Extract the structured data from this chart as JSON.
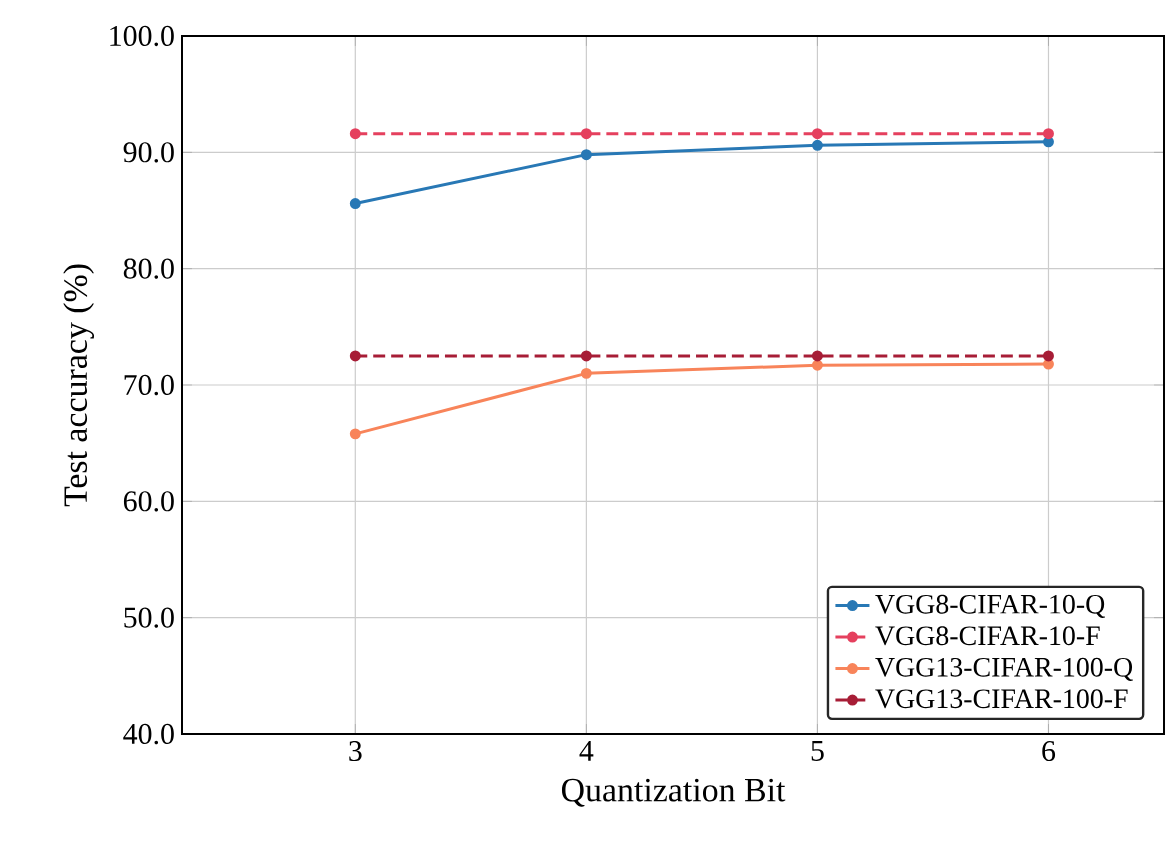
{
  "chart_data": {
    "type": "line",
    "xlabel": "Quantization Bit",
    "ylabel": "Test accuracy (%)",
    "x": [
      3,
      4,
      5,
      6
    ],
    "series": [
      {
        "name": "VGG8-CIFAR-10-Q",
        "color": "#2878b5",
        "line_style": "solid",
        "values": [
          85.6,
          89.8,
          90.6,
          90.9
        ]
      },
      {
        "name": "VGG8-CIFAR-10-F",
        "color": "#e5405e",
        "line_style": "dashed",
        "values": [
          91.6,
          91.6,
          91.6,
          91.6
        ]
      },
      {
        "name": "VGG13-CIFAR-100-Q",
        "color": "#f8845a",
        "line_style": "solid",
        "values": [
          65.8,
          71.0,
          71.7,
          71.8
        ]
      },
      {
        "name": "VGG13-CIFAR-100-F",
        "color": "#a71d36",
        "line_style": "dashed",
        "values": [
          72.5,
          72.5,
          72.5,
          72.5
        ]
      }
    ],
    "xlim": [
      2.25,
      6.5
    ],
    "ylim": [
      40,
      100
    ],
    "xticks": [
      3,
      4,
      5,
      6
    ],
    "yticks": [
      {
        "value": 40,
        "label": "40.0"
      },
      {
        "value": 50,
        "label": "50.0"
      },
      {
        "value": 60,
        "label": "60.0"
      },
      {
        "value": 70,
        "label": "70.0"
      },
      {
        "value": 80,
        "label": "80.0"
      },
      {
        "value": 90,
        "label": "90.0"
      },
      {
        "value": 100,
        "label": "100.0"
      }
    ],
    "grid": true,
    "legend": "bottom right",
    "marker": "circle"
  }
}
